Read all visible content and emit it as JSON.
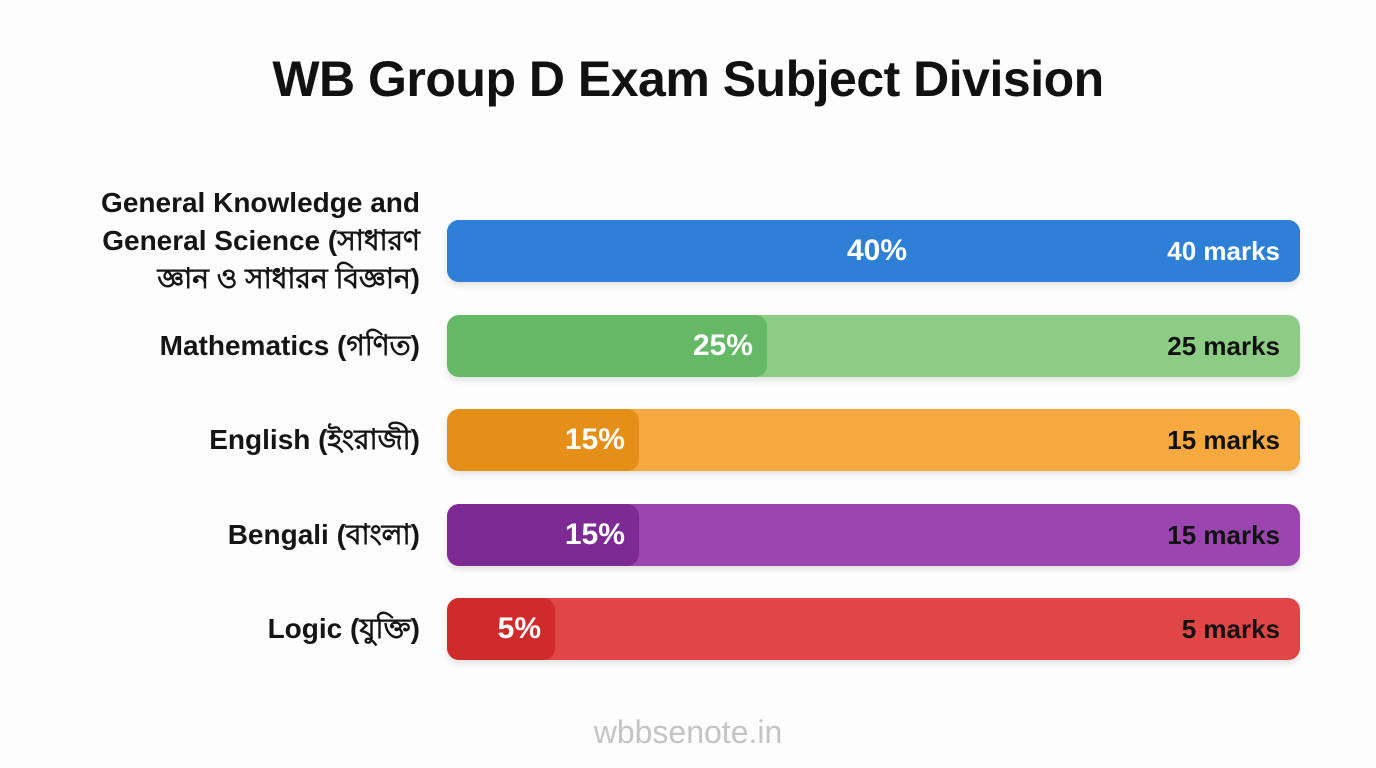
{
  "watermark": "wbbsenote.in",
  "chart_data": {
    "type": "bar",
    "title": "WB Group D Exam Subject Division",
    "categories": [
      "General Knowledge and\nGeneral Science (সাধারণ\nজ্ঞান ও সাধারন বিজ্ঞান)",
      "Mathematics (গণিত)",
      "English (ইংরাজী)",
      "Bengali (বাংলা)",
      "Logic (যুক্তি)"
    ],
    "values": [
      40,
      25,
      15,
      15,
      5
    ],
    "value_labels": [
      "40%",
      "25%",
      "15%",
      "15%",
      "5%"
    ],
    "marks_labels": [
      "40 marks",
      "25 marks",
      "15 marks",
      "15 marks",
      "5 marks"
    ],
    "xlim": [
      0,
      100
    ],
    "grid": false,
    "colors": {
      "fill": [
        "#2e7fd6",
        "#64b866",
        "#e58f19",
        "#7e2a94",
        "#d02a2a"
      ],
      "track": [
        "#2e7fd6",
        "#8ccc85",
        "#f5a93e",
        "#9b45b0",
        "#e04646"
      ],
      "marks_text": [
        "#ffffff",
        "#111111",
        "#111111",
        "#111111",
        "#111111"
      ]
    }
  }
}
